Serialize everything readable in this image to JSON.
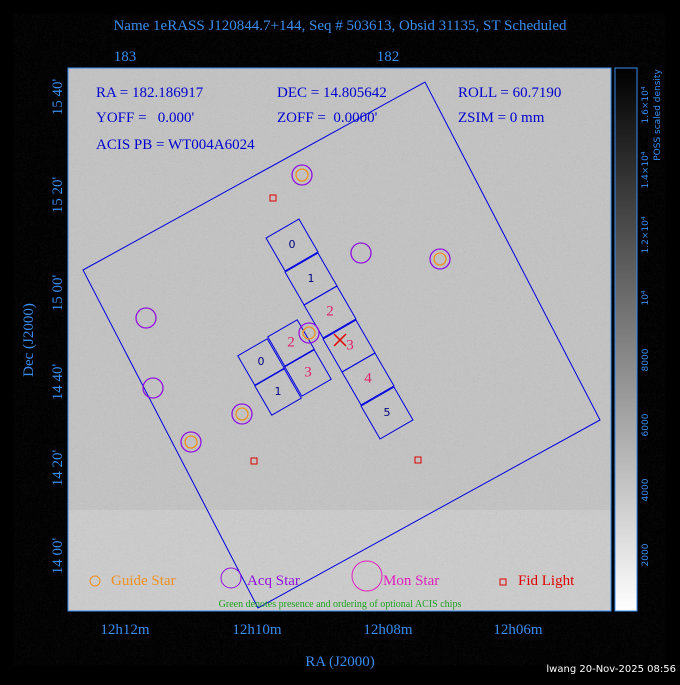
{
  "header": {
    "title": "Name 1eRASS J120844.7+144, Seq # 503613, Obsid 31135, ST Scheduled"
  },
  "info": {
    "ra": "RA = 182.186917",
    "dec": "DEC = 14.805642",
    "roll": "ROLL = 60.7190",
    "yoff": "YOFF =   0.000'",
    "zoff": "ZOFF =  0.0000'",
    "zsim": "ZSIM = 0 mm",
    "acis_pb": "ACIS PB = WT004A6024"
  },
  "axes": {
    "x_label": "RA (J2000)",
    "y_label": "Dec (J2000)",
    "top_ticks": [
      "183",
      "182"
    ],
    "bottom_ticks": [
      "12h12m",
      "12h10m",
      "12h08m",
      "12h06m"
    ],
    "left_ticks": [
      "15 40'",
      "15 20'",
      "15 00'",
      "14 40'",
      "14 20'",
      "14 00'"
    ]
  },
  "colorbar": {
    "title": "POSS scaled density",
    "ticks": [
      "2000",
      "4000",
      "6000",
      "8000",
      "10⁴",
      "1.2×10⁴",
      "1.4×10⁴",
      "1.6×10⁴"
    ]
  },
  "chips": {
    "s_array": [
      "0",
      "1",
      "2",
      "3",
      "4",
      "5"
    ],
    "i_array": [
      "0",
      "1",
      "2",
      "3"
    ]
  },
  "legend": {
    "guide": "Guide Star",
    "acq": "Acq Star",
    "mon": "Mon Star",
    "fid": "Fid Light"
  },
  "note": "Green denotes presence and ordering of optional ACIS chips",
  "footer": "lwang 20-Nov-2025 08:56"
}
